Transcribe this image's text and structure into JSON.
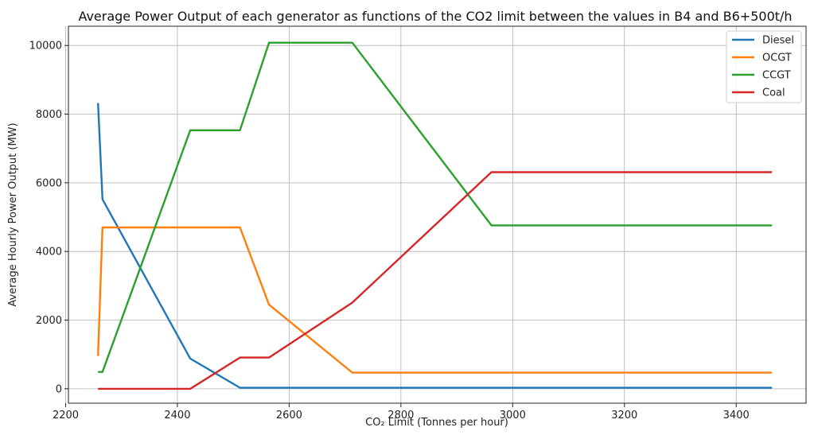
{
  "chart_data": {
    "type": "line",
    "title": "Average Power Output of each generator as functions of the CO2 limit between the values in B4 and B6+500t/h",
    "xlabel": "CO₂ Limit (Tonnes per hour)",
    "ylabel": "Average Hourly Power Output (MW)",
    "xlim": [
      2205,
      3525
    ],
    "ylim": [
      -420,
      10560
    ],
    "xticks": [
      2200,
      2400,
      2600,
      2800,
      3000,
      3200,
      3400
    ],
    "yticks": [
      0,
      2000,
      4000,
      6000,
      8000,
      10000
    ],
    "grid": true,
    "legend_position": "top-right",
    "series": [
      {
        "name": "Diesel",
        "color": "#1f77b4",
        "points": [
          [
            2258,
            8320
          ],
          [
            2266,
            5520
          ],
          [
            2423,
            880
          ],
          [
            2512,
            30
          ],
          [
            2564,
            30
          ],
          [
            2713,
            30
          ],
          [
            2962,
            30
          ],
          [
            3464,
            30
          ]
        ]
      },
      {
        "name": "OCGT",
        "color": "#ff7f0e",
        "points": [
          [
            2258,
            960
          ],
          [
            2266,
            4700
          ],
          [
            2423,
            4700
          ],
          [
            2512,
            4700
          ],
          [
            2564,
            2450
          ],
          [
            2713,
            470
          ],
          [
            2962,
            470
          ],
          [
            3464,
            470
          ]
        ]
      },
      {
        "name": "CCGT",
        "color": "#2ca02c",
        "points": [
          [
            2258,
            490
          ],
          [
            2266,
            490
          ],
          [
            2423,
            7530
          ],
          [
            2512,
            7530
          ],
          [
            2564,
            10080
          ],
          [
            2713,
            10080
          ],
          [
            2962,
            4760
          ],
          [
            3464,
            4760
          ]
        ]
      },
      {
        "name": "Coal",
        "color": "#d62728",
        "points": [
          [
            2258,
            0
          ],
          [
            2266,
            0
          ],
          [
            2423,
            0
          ],
          [
            2512,
            910
          ],
          [
            2564,
            910
          ],
          [
            2713,
            2510
          ],
          [
            2962,
            6310
          ],
          [
            3464,
            6310
          ]
        ]
      }
    ]
  }
}
